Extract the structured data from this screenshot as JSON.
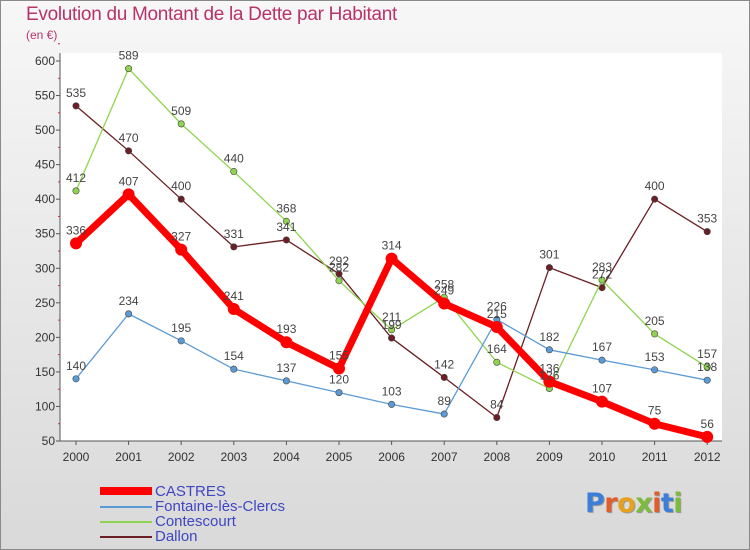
{
  "header": {
    "title": "Evolution du Montant de la Dette par Habitant",
    "unit": "(en €)"
  },
  "chart_data": {
    "type": "line",
    "title": "Evolution du Montant de la Dette par Habitant",
    "subtitle": "(en €)",
    "xlabel": "",
    "ylabel": "",
    "categories": [
      "2000",
      "2001",
      "2002",
      "2003",
      "2004",
      "2005",
      "2006",
      "2007",
      "2008",
      "2009",
      "2010",
      "2011",
      "2012"
    ],
    "ylim": [
      50,
      600
    ],
    "yticks": [
      50,
      100,
      150,
      200,
      250,
      300,
      350,
      400,
      450,
      500,
      550,
      600
    ],
    "grid": false,
    "legend_position": "bottom-left",
    "series": [
      {
        "name": "CASTRES",
        "color": "#ff0000",
        "values": [
          336,
          407,
          327,
          241,
          193,
          155,
          314,
          249,
          215,
          136,
          107,
          75,
          56
        ]
      },
      {
        "name": "Fontaine-lès-Clercs",
        "color": "#5b9bd5",
        "values": [
          140,
          234,
          195,
          154,
          137,
          120,
          103,
          89,
          226,
          182,
          167,
          153,
          138
        ]
      },
      {
        "name": "Contescourt",
        "color": "#8fd44f",
        "values": [
          412,
          589,
          509,
          440,
          368,
          282,
          211,
          258,
          164,
          126,
          283,
          205,
          157
        ]
      },
      {
        "name": "Dallon",
        "color": "#6b1f24",
        "values": [
          535,
          470,
          400,
          331,
          341,
          292,
          199,
          142,
          84,
          301,
          272,
          400,
          353
        ]
      }
    ],
    "point_labels": [
      [
        "336",
        "407",
        "327",
        "241",
        "193",
        "155",
        "314",
        "249",
        "215",
        "136",
        "107",
        "75",
        "56"
      ],
      [
        "140",
        "234",
        "195",
        "154",
        "137",
        "120",
        "103",
        "89",
        "226",
        "182",
        "167",
        "153",
        "138"
      ],
      [
        "412",
        "589",
        "509",
        "440",
        "368",
        "282",
        "211",
        "258",
        "164",
        "126",
        "283",
        "205",
        "157"
      ],
      [
        "535",
        "470",
        "400",
        "331",
        "341",
        "292",
        "199",
        "142",
        "84",
        "301",
        "272",
        "400",
        "353"
      ]
    ]
  },
  "logo": {
    "letters": [
      "P",
      "r",
      "o",
      "x",
      "i",
      "t",
      "i"
    ],
    "colors": [
      "#3d7ed8",
      "#e25d2a",
      "#e6a21c",
      "#7dbb3a",
      "#e25d2a",
      "#3d7ed8",
      "#7dbb3a"
    ]
  }
}
